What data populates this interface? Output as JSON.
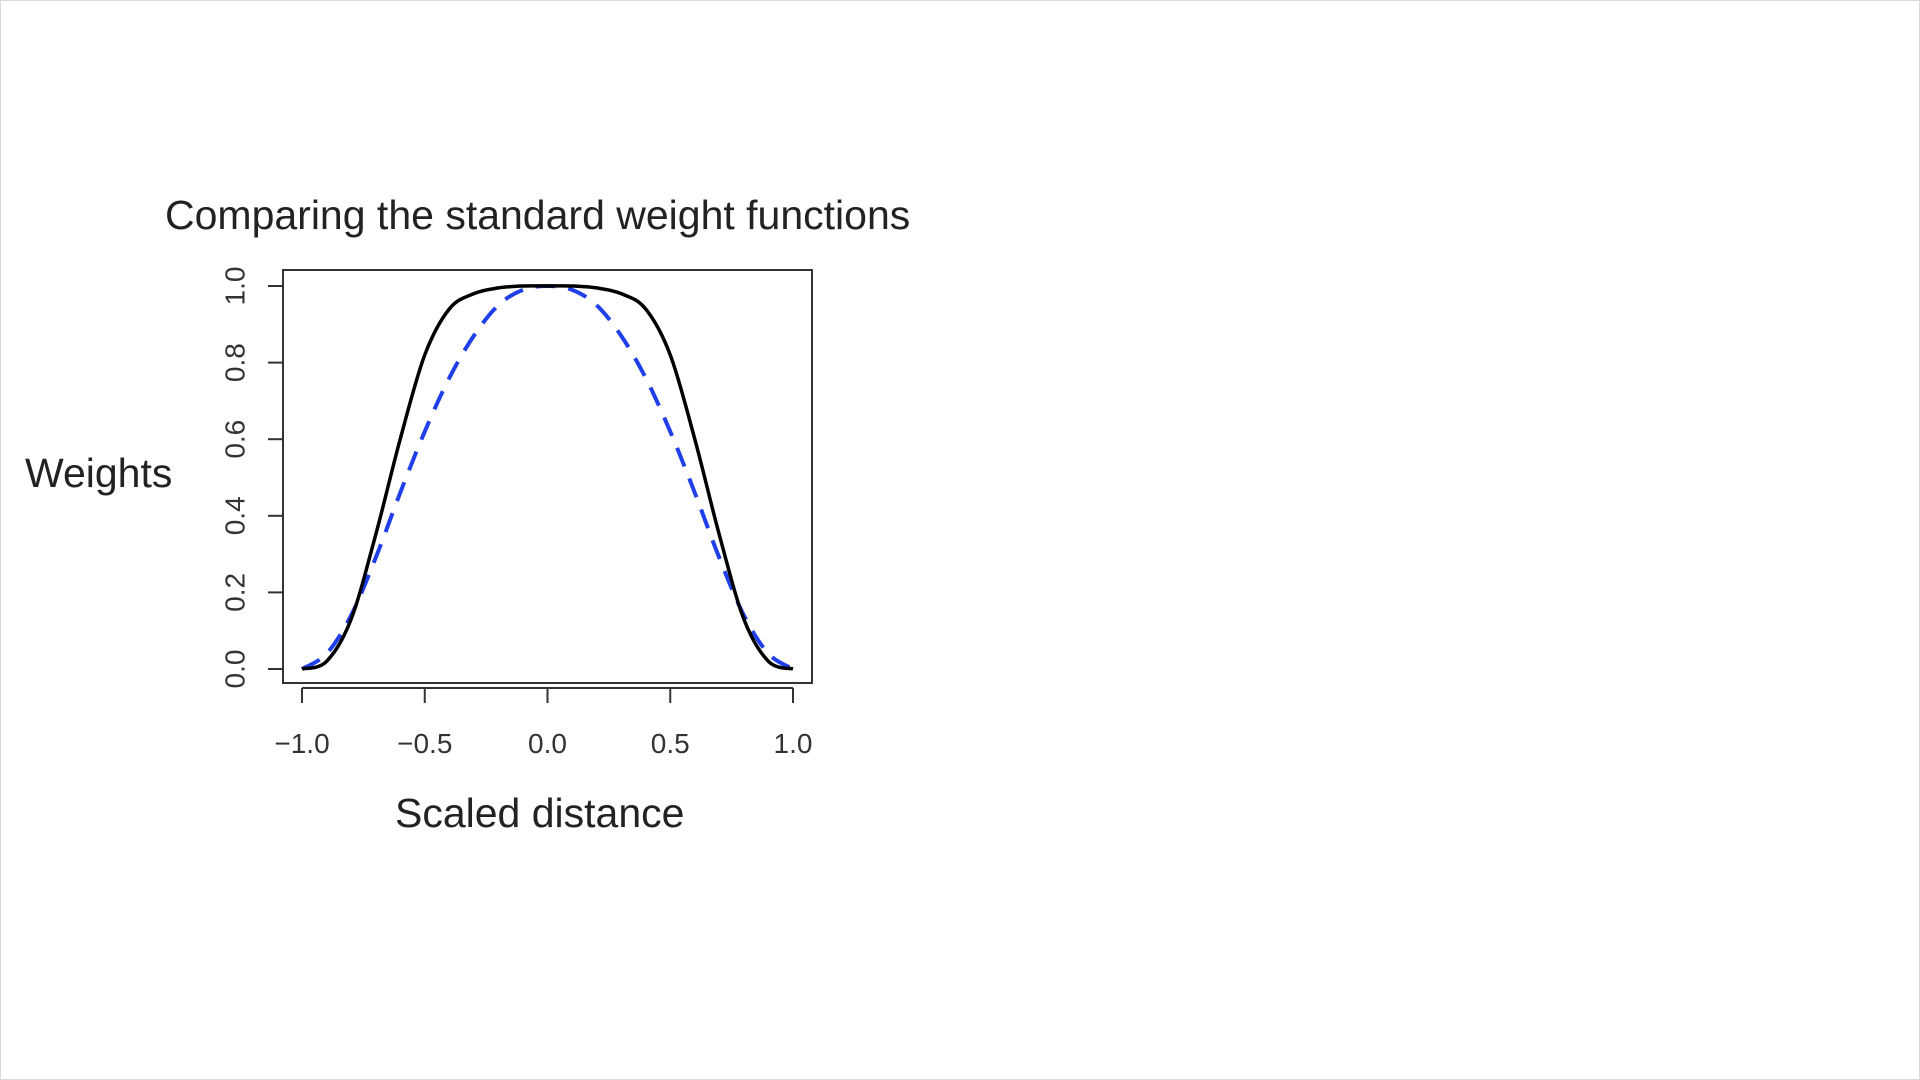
{
  "chart_data": {
    "type": "line",
    "title": "Comparing the standard weight functions",
    "xlabel": "Scaled distance",
    "ylabel": "Weights",
    "xlim": [
      -1.0,
      1.0
    ],
    "ylim": [
      0.0,
      1.0
    ],
    "x_ticks": [
      "−1.0",
      "−0.5",
      "0.0",
      "0.5",
      "1.0"
    ],
    "y_ticks": [
      "0.0",
      "0.2",
      "0.4",
      "0.6",
      "0.8",
      "1.0"
    ],
    "grid": false,
    "x": [
      -1.0,
      -0.9,
      -0.8,
      -0.7,
      -0.6,
      -0.5,
      -0.4,
      -0.3,
      -0.2,
      -0.1,
      0.0,
      0.1,
      0.2,
      0.3,
      0.4,
      0.5,
      0.6,
      0.7,
      0.8,
      0.9,
      1.0
    ],
    "series": [
      {
        "style": "solid",
        "color": "#000000",
        "values": [
          0.0,
          0.02,
          0.13,
          0.35,
          0.6,
          0.82,
          0.94,
          0.98,
          0.995,
          1.0,
          1.0,
          1.0,
          0.995,
          0.98,
          0.94,
          0.82,
          0.6,
          0.35,
          0.13,
          0.02,
          0.0
        ]
      },
      {
        "style": "dashed",
        "color": "#1f3fe8",
        "values": [
          0.0,
          0.04,
          0.14,
          0.29,
          0.46,
          0.62,
          0.76,
          0.87,
          0.95,
          0.99,
          1.0,
          0.99,
          0.95,
          0.87,
          0.76,
          0.62,
          0.46,
          0.29,
          0.14,
          0.04,
          0.0
        ]
      }
    ]
  }
}
